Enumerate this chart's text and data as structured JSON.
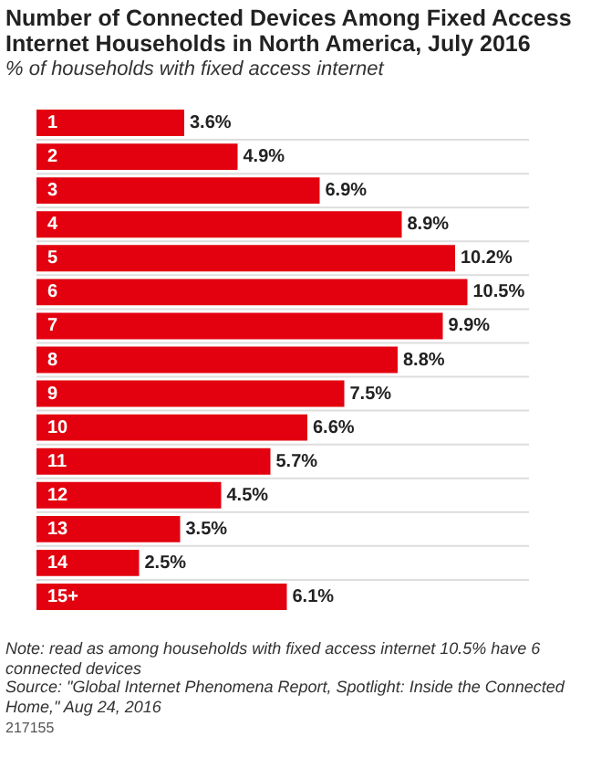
{
  "chart_data": {
    "type": "bar",
    "orientation": "horizontal",
    "title": "Number of Connected Devices Among Fixed Access Internet Households in North America, July 2016",
    "subtitle": "% of households with fixed access internet",
    "categories": [
      "1",
      "2",
      "3",
      "4",
      "5",
      "6",
      "7",
      "8",
      "9",
      "10",
      "11",
      "12",
      "13",
      "14",
      "15+"
    ],
    "values": [
      3.6,
      4.9,
      6.9,
      8.9,
      10.2,
      10.5,
      9.9,
      8.8,
      7.5,
      6.6,
      5.7,
      4.5,
      3.5,
      2.5,
      6.1
    ],
    "value_labels": [
      "3.6%",
      "4.9%",
      "6.9%",
      "8.9%",
      "10.2%",
      "10.5%",
      "9.9%",
      "8.8%",
      "7.5%",
      "6.6%",
      "5.7%",
      "4.5%",
      "3.5%",
      "2.5%",
      "6.1%"
    ],
    "color": "#e3000f",
    "annotations": [
      "Note: read as among households with fixed access internet 10.5% have 6 connected devices",
      "Source: \"Global Internet Phenomena Report, Spotlight: Inside the Connected Home,\" Aug 24, 2016",
      "217155"
    ]
  }
}
